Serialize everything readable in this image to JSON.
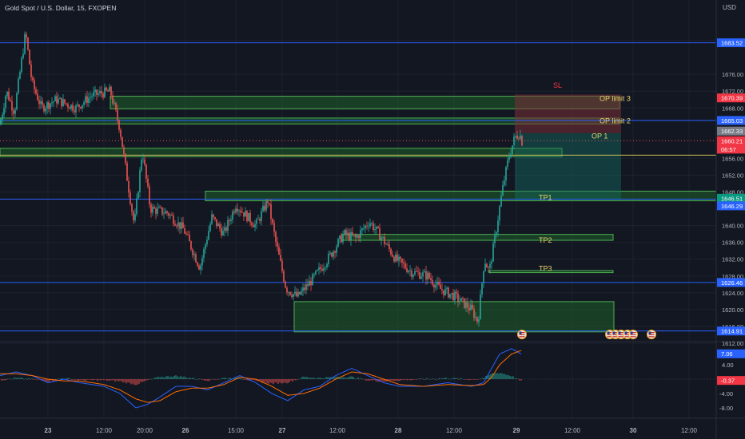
{
  "header": {
    "title": "Gold Spot / U.S. Dollar, 15, FXOPEN",
    "currency": "USD"
  },
  "colors": {
    "background": "#131722",
    "grid": "#1e222d",
    "up": "#26a69a",
    "down": "#ef5350",
    "hline": "#2962ff",
    "zone_fill": "#1f5e2a",
    "zone_stroke": "#4caf50",
    "label_yellow": "#e8d36b",
    "label_red": "#f23645",
    "macd_line": "#2962ff",
    "signal_line": "#ff6d00"
  },
  "chart_data": [
    {
      "type": "candlestick",
      "title": "Gold Spot / U.S. Dollar, 15, FXOPEN",
      "ylabel": "USD",
      "ylim": [
        1612,
        1688
      ],
      "y_ticks": [
        1684.0,
        1676.0,
        1672.0,
        1668.0,
        1656.0,
        1652.0,
        1648.0,
        1640.0,
        1636.0,
        1632.0,
        1628.0,
        1624.0,
        1620.0,
        1616.0,
        1612.0
      ],
      "x_ticks": [
        "23",
        "12:00",
        "20:00",
        "26",
        "15:00",
        "27",
        "12:00",
        "28",
        "12:00",
        "29",
        "12:00",
        "30",
        "12:00"
      ],
      "price_path": [
        [
          0,
          1664
        ],
        [
          8,
          1672
        ],
        [
          18,
          1667
        ],
        [
          32,
          1686
        ],
        [
          40,
          1674
        ],
        [
          52,
          1668
        ],
        [
          70,
          1670
        ],
        [
          95,
          1668
        ],
        [
          115,
          1671
        ],
        [
          138,
          1672
        ],
        [
          150,
          1663
        ],
        [
          160,
          1650
        ],
        [
          168,
          1640
        ],
        [
          178,
          1658
        ],
        [
          188,
          1644
        ],
        [
          210,
          1643
        ],
        [
          230,
          1639
        ],
        [
          250,
          1630
        ],
        [
          265,
          1642
        ],
        [
          280,
          1638
        ],
        [
          295,
          1645
        ],
        [
          320,
          1640
        ],
        [
          335,
          1646
        ],
        [
          345,
          1636
        ],
        [
          358,
          1625
        ],
        [
          372,
          1623
        ],
        [
          390,
          1627
        ],
        [
          410,
          1632
        ],
        [
          430,
          1638
        ],
        [
          445,
          1637
        ],
        [
          462,
          1641
        ],
        [
          478,
          1637
        ],
        [
          495,
          1632
        ],
        [
          515,
          1629
        ],
        [
          535,
          1628
        ],
        [
          550,
          1625
        ],
        [
          570,
          1623
        ],
        [
          590,
          1620
        ],
        [
          598,
          1617
        ],
        [
          606,
          1632
        ],
        [
          612,
          1629
        ],
        [
          620,
          1638
        ],
        [
          628,
          1648
        ],
        [
          636,
          1656
        ],
        [
          644,
          1661
        ],
        [
          650,
          1662
        ],
        [
          653,
          1660
        ]
      ],
      "horizontal_lines": [
        {
          "price": 1683.52,
          "label": "1683.52",
          "color": "#2962ff"
        },
        {
          "price": 1665.03,
          "label": "1665.03",
          "color": "#2962ff"
        },
        {
          "price": 1656.76,
          "label": "",
          "color": "#d1c35a"
        },
        {
          "price": 1646.29,
          "label": "1646.29",
          "color": "#2962ff"
        },
        {
          "price": 1626.46,
          "label": "1626.46",
          "color": "#2962ff"
        },
        {
          "price": 1614.91,
          "label": "1614.91",
          "color": "#2962ff"
        }
      ],
      "zones": [
        {
          "x0": 138,
          "x1": 775,
          "top": 1670.8,
          "bottom": 1667.8
        },
        {
          "x0": 0,
          "x1": 775,
          "top": 1665.6,
          "bottom": 1664.2
        },
        {
          "x0": 0,
          "x1": 703,
          "top": 1658.4,
          "bottom": 1656.4
        },
        {
          "x0": 257,
          "x1": 896,
          "top": 1648.2,
          "bottom": 1645.9
        },
        {
          "x0": 427,
          "x1": 767,
          "top": 1637.9,
          "bottom": 1636.5
        },
        {
          "x0": 612,
          "x1": 767,
          "top": 1629.3,
          "bottom": 1628.8
        },
        {
          "x0": 368,
          "x1": 768,
          "top": 1621.9,
          "bottom": 1614.7
        }
      ],
      "position": {
        "x0": 644,
        "x1": 777,
        "stop_top": 1671.2,
        "entry": 1662.0,
        "target_bottom": 1646.1
      },
      "annotations": [
        {
          "text": "SL",
          "x": 692,
          "price": 1673.4,
          "color": "#f23645"
        },
        {
          "text": "OP limit 3",
          "x": 750,
          "price": 1670.2,
          "color": "#e8d36b"
        },
        {
          "text": "OP limit 2",
          "x": 750,
          "price": 1664.9,
          "color": "#e8d36b"
        },
        {
          "text": "OP 1",
          "x": 740,
          "price": 1661.3,
          "color": "#e8d36b"
        },
        {
          "text": "TP1",
          "x": 674,
          "price": 1646.7,
          "color": "#e8d36b"
        },
        {
          "text": "TP2",
          "x": 674,
          "price": 1636.5,
          "color": "#e8d36b"
        },
        {
          "text": "TP3",
          "x": 674,
          "price": 1629.8,
          "color": "#e8d36b"
        }
      ],
      "price_labels": [
        {
          "text": "1683.52",
          "price": 1683.52,
          "bg": "#2962ff"
        },
        {
          "text": "1670.39",
          "price": 1670.39,
          "bg": "#f23645"
        },
        {
          "text": "1665.03",
          "price": 1665.03,
          "bg": "#2962ff"
        },
        {
          "text": "1662.33",
          "price": 1662.5,
          "bg": "#787b86"
        },
        {
          "text": "1660.21",
          "price": 1660.21,
          "bg": "#f23645"
        },
        {
          "text": "06:57",
          "price": 1658.2,
          "bg": "#f23645"
        },
        {
          "text": "1646.51",
          "price": 1646.51,
          "bg": "#089981"
        },
        {
          "text": "1646.29",
          "price": 1644.7,
          "bg": "#2962ff"
        },
        {
          "text": "1626.46",
          "price": 1626.46,
          "bg": "#2962ff"
        },
        {
          "text": "1614.91",
          "price": 1614.91,
          "bg": "#2962ff"
        }
      ],
      "events": [
        653,
        763,
        770,
        777,
        785,
        792,
        815
      ]
    },
    {
      "type": "macd",
      "ylim": [
        -10,
        10
      ],
      "y_ticks": [
        4.0,
        -4.0,
        -8.0
      ],
      "value_labels": [
        {
          "text": "7.06",
          "value": 7.06,
          "bg": "#2962ff"
        },
        {
          "text": "-0.37",
          "value": -0.37,
          "bg": "#f23645"
        }
      ],
      "macd_path": [
        [
          0,
          1
        ],
        [
          20,
          2
        ],
        [
          40,
          1
        ],
        [
          60,
          -1
        ],
        [
          80,
          0
        ],
        [
          100,
          -1
        ],
        [
          130,
          -2
        ],
        [
          150,
          -4
        ],
        [
          170,
          -8
        ],
        [
          185,
          -7
        ],
        [
          200,
          -5
        ],
        [
          220,
          -2
        ],
        [
          240,
          -2
        ],
        [
          260,
          -3
        ],
        [
          280,
          -1
        ],
        [
          300,
          1
        ],
        [
          320,
          -1
        ],
        [
          340,
          -4
        ],
        [
          360,
          -6
        ],
        [
          380,
          -3
        ],
        [
          400,
          -2
        ],
        [
          420,
          1
        ],
        [
          440,
          3
        ],
        [
          460,
          1
        ],
        [
          480,
          -1
        ],
        [
          500,
          -2
        ],
        [
          530,
          -2
        ],
        [
          560,
          -1
        ],
        [
          590,
          -2
        ],
        [
          605,
          -1
        ],
        [
          615,
          3
        ],
        [
          625,
          7
        ],
        [
          640,
          8.5
        ],
        [
          652,
          7
        ]
      ],
      "signal_path": [
        [
          0,
          1.5
        ],
        [
          20,
          1.5
        ],
        [
          40,
          1
        ],
        [
          60,
          0
        ],
        [
          80,
          -0.5
        ],
        [
          100,
          -0.5
        ],
        [
          130,
          -1.5
        ],
        [
          150,
          -3
        ],
        [
          170,
          -5.5
        ],
        [
          185,
          -6.5
        ],
        [
          200,
          -6
        ],
        [
          220,
          -3.5
        ],
        [
          240,
          -2.5
        ],
        [
          260,
          -2.5
        ],
        [
          280,
          -1.5
        ],
        [
          300,
          0.5
        ],
        [
          320,
          0
        ],
        [
          340,
          -2
        ],
        [
          360,
          -4.5
        ],
        [
          380,
          -4
        ],
        [
          400,
          -2.5
        ],
        [
          420,
          0
        ],
        [
          440,
          2
        ],
        [
          460,
          1.5
        ],
        [
          480,
          0
        ],
        [
          500,
          -1.5
        ],
        [
          530,
          -2
        ],
        [
          560,
          -1.5
        ],
        [
          590,
          -1.8
        ],
        [
          605,
          -1.5
        ],
        [
          615,
          0.5
        ],
        [
          625,
          4
        ],
        [
          640,
          7
        ],
        [
          652,
          8
        ]
      ]
    }
  ]
}
